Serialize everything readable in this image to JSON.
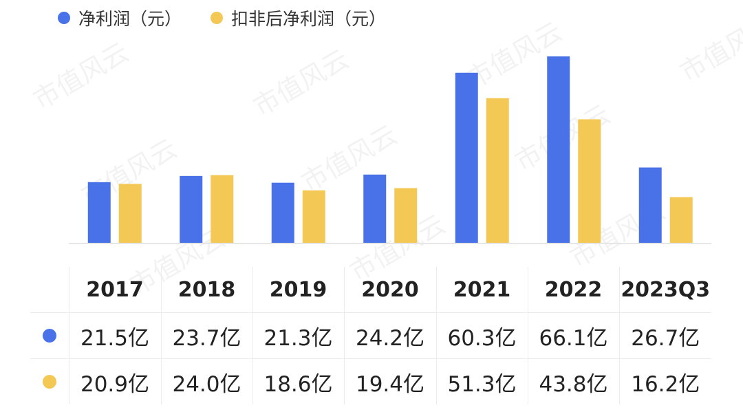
{
  "chart_data": {
    "type": "bar",
    "categories": [
      "2017",
      "2018",
      "2019",
      "2020",
      "2021",
      "2022",
      "2023Q3"
    ],
    "series": [
      {
        "name": "净利润（元）",
        "color": "#4a72e8",
        "values": [
          21.5,
          23.7,
          21.3,
          24.2,
          60.3,
          66.1,
          26.7
        ],
        "labels": [
          "21.5亿",
          "23.7亿",
          "21.3亿",
          "24.2亿",
          "60.3亿",
          "66.1亿",
          "26.7亿"
        ]
      },
      {
        "name": "扣非后净利润（元）",
        "color": "#f3c855",
        "values": [
          20.9,
          24.0,
          18.6,
          19.4,
          51.3,
          43.8,
          16.2
        ],
        "labels": [
          "20.9亿",
          "24.0亿",
          "18.6亿",
          "19.4亿",
          "51.3亿",
          "43.8亿",
          "16.2亿"
        ]
      }
    ],
    "title": "",
    "xlabel": "",
    "ylabel": "",
    "ylim": [
      0,
      66.1
    ],
    "grid": false,
    "legend": "top-left"
  },
  "watermark_text": "市值风云"
}
